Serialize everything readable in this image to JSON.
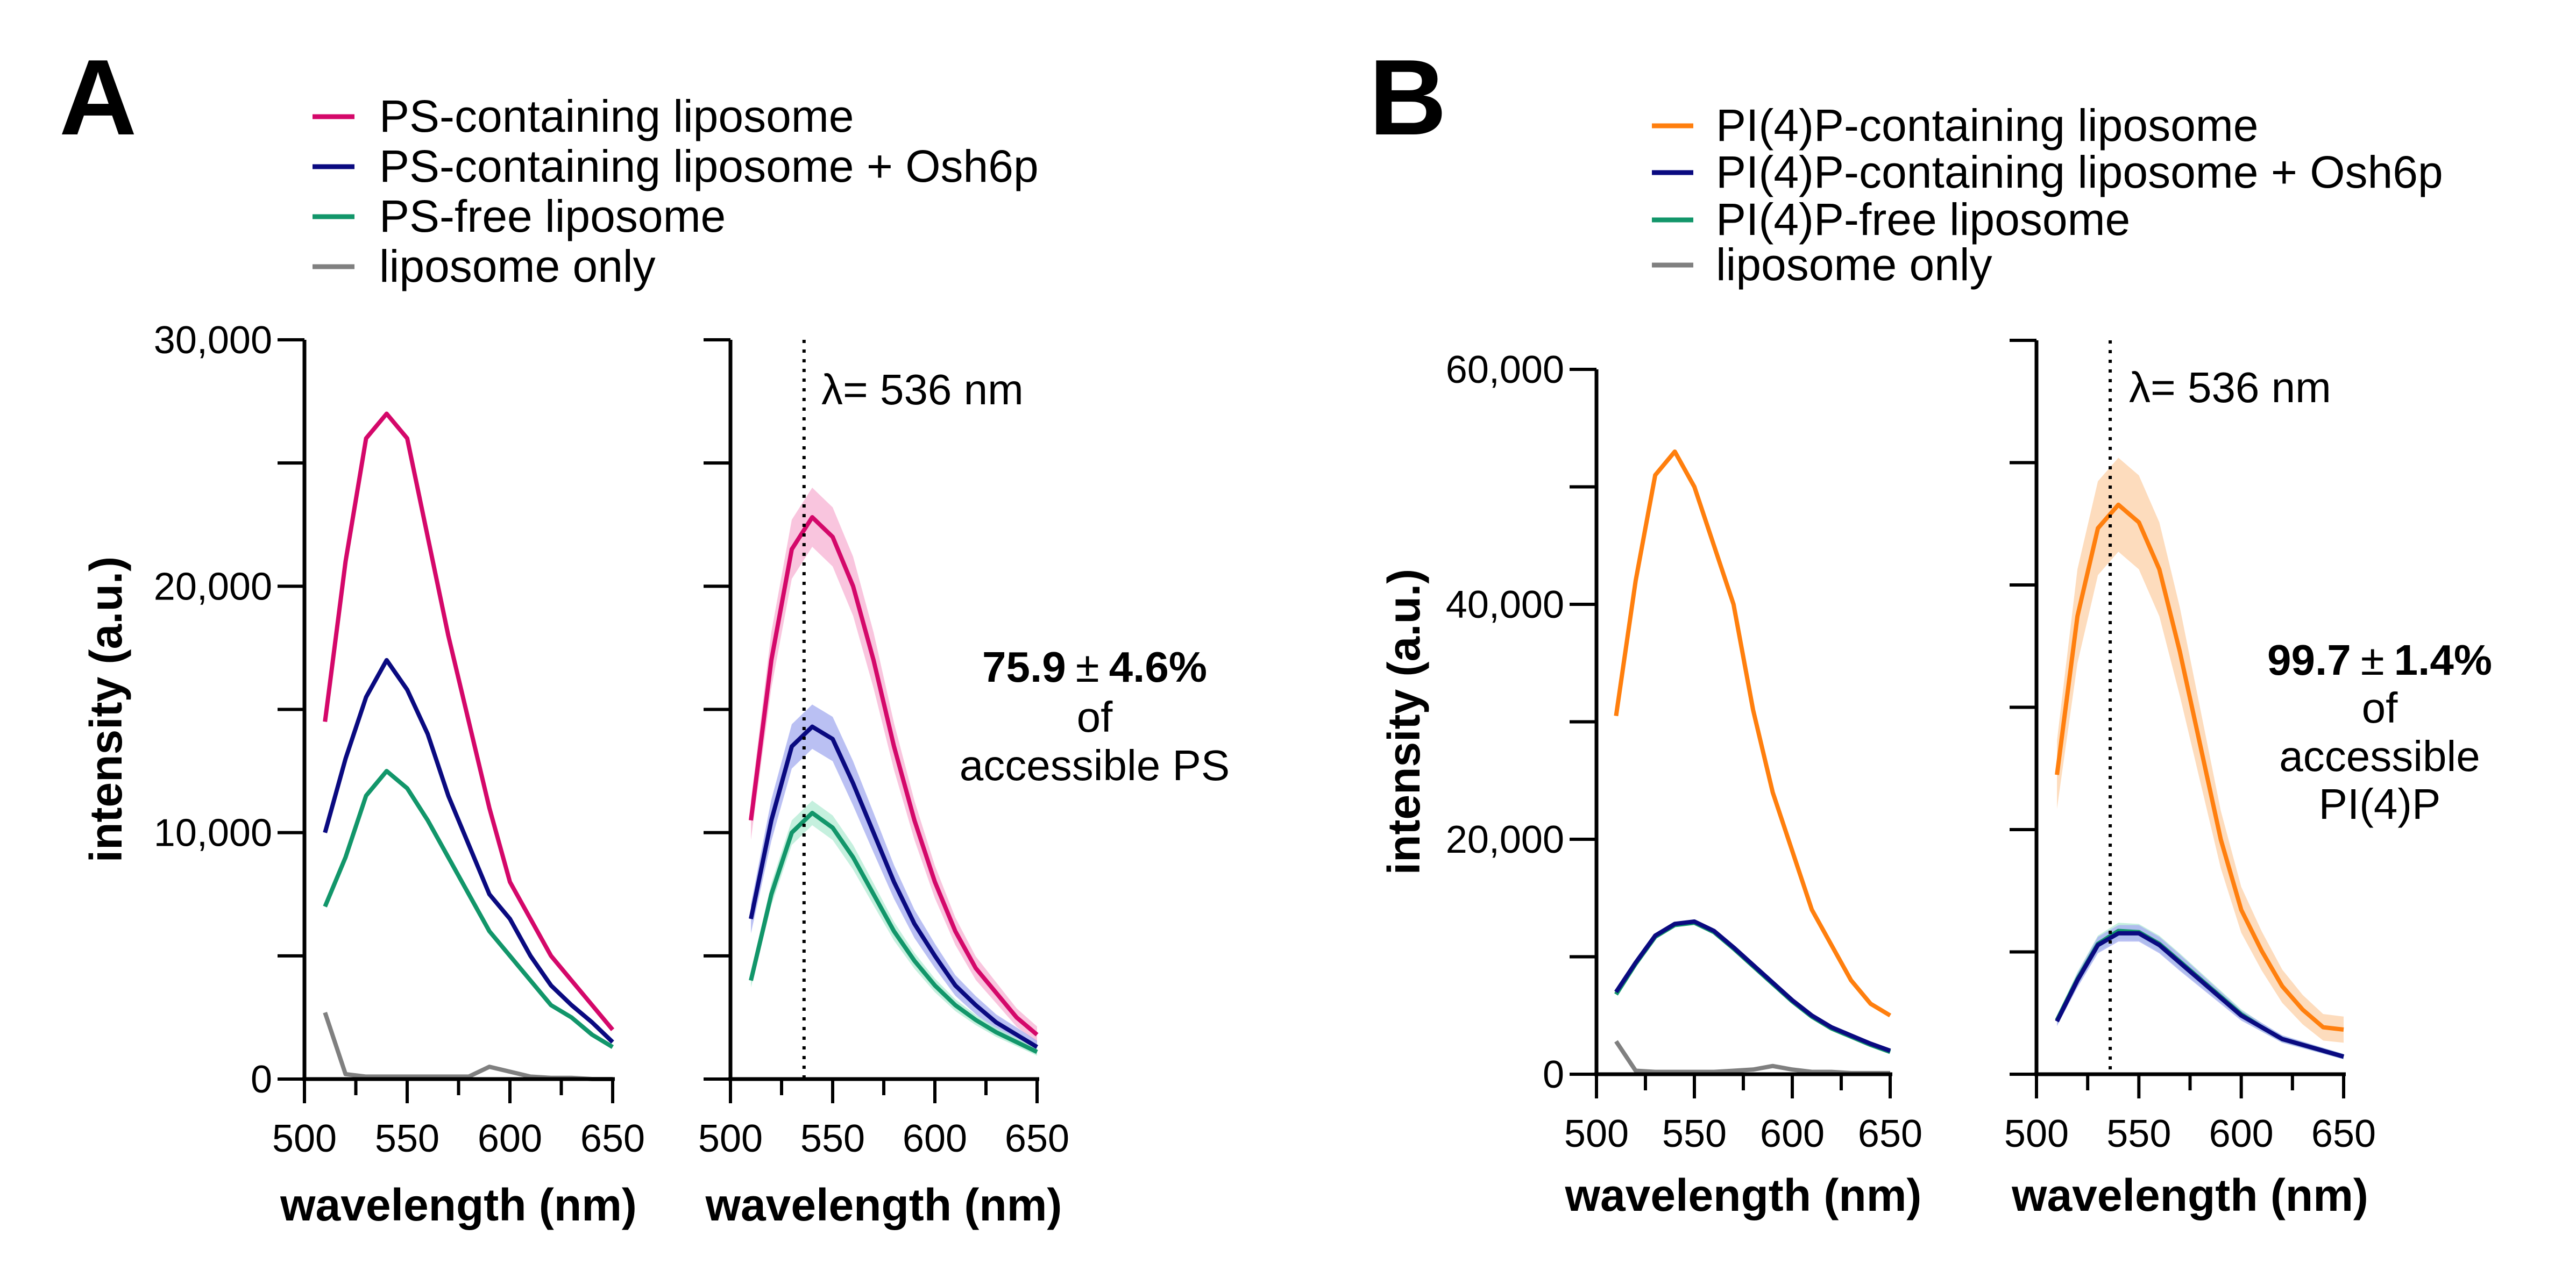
{
  "colors": {
    "pink": "#d4086a",
    "navy": "#0a0a80",
    "green": "#12966a",
    "gray": "#808080",
    "orange": "#ff7f0e",
    "pink_band": "#f7b6d6",
    "navy_band": "#a9b0f0",
    "green_band": "#b6ecd6",
    "orange_band": "#fcd3ad"
  },
  "panel_letters": [
    "A",
    "B"
  ],
  "legends": [
    {
      "items": [
        {
          "label": "PS-containing liposome",
          "color": "#d4086a"
        },
        {
          "label": "PS-containing liposome + Osh6p",
          "color": "#0a0a80"
        },
        {
          "label": "PS-free liposome",
          "color": "#12966a"
        },
        {
          "label": "liposome only",
          "color": "#808080"
        }
      ]
    },
    {
      "items": [
        {
          "label": "PI(4)P-containing liposome",
          "color": "#ff7f0e"
        },
        {
          "label": "PI(4)P-containing liposome + Osh6p",
          "color": "#0a0a80"
        },
        {
          "label": "PI(4)P-free liposome",
          "color": "#12966a"
        },
        {
          "label": "liposome only",
          "color": "#808080"
        }
      ]
    }
  ],
  "annotations": [
    {
      "lambda": "λ= 536 nm",
      "value": "75.9",
      "pm": "±",
      "err": "4.6%",
      "lines": [
        "of",
        "accessible PS"
      ]
    },
    {
      "lambda": "λ= 536 nm",
      "value": "99.7",
      "pm": "±",
      "err": "1.4%",
      "lines": [
        "of",
        "accessible",
        "PI(4)P"
      ]
    }
  ],
  "chart_data": [
    {
      "type": "line",
      "panel": "A-left",
      "xlabel": "wavelength (nm)",
      "ylabel": "intensity (a.u.)",
      "xlim": [
        500,
        650
      ],
      "ylim": [
        0,
        30000
      ],
      "xticks": [
        "500",
        "550",
        "600",
        "650"
      ],
      "yticks": [
        "0",
        "10,000",
        "20,000",
        "30,000"
      ],
      "grid": false,
      "x": [
        510,
        520,
        530,
        540,
        550,
        560,
        570,
        580,
        590,
        600,
        610,
        620,
        630,
        640,
        650
      ],
      "series": [
        {
          "name": "PS-containing liposome",
          "color": "#d4086a",
          "values": [
            14500,
            21000,
            26000,
            27000,
            26000,
            22000,
            18000,
            14500,
            11000,
            8000,
            6500,
            5000,
            4000,
            3000,
            2000
          ]
        },
        {
          "name": "PS-containing liposome + Osh6p",
          "color": "#0a0a80",
          "values": [
            10000,
            13000,
            15500,
            17000,
            15800,
            14000,
            11500,
            9500,
            7500,
            6500,
            5000,
            3800,
            3000,
            2300,
            1500
          ]
        },
        {
          "name": "PS-free liposome",
          "color": "#12966a",
          "values": [
            7000,
            9000,
            11500,
            12500,
            11800,
            10500,
            9000,
            7500,
            6000,
            5000,
            4000,
            3000,
            2500,
            1800,
            1300
          ]
        },
        {
          "name": "liposome only",
          "color": "#808080",
          "values": [
            2700,
            200,
            100,
            100,
            100,
            100,
            100,
            100,
            500,
            300,
            100,
            50,
            50,
            0,
            0
          ]
        }
      ]
    },
    {
      "type": "line",
      "panel": "A-right",
      "xlabel": "wavelength (nm)",
      "xlim": [
        500,
        650
      ],
      "ylim": [
        0,
        30000
      ],
      "xticks": [
        "500",
        "550",
        "600",
        "650"
      ],
      "vline": 536,
      "grid": false,
      "x": [
        510,
        520,
        530,
        540,
        550,
        560,
        570,
        580,
        590,
        600,
        610,
        620,
        630,
        640,
        650
      ],
      "series": [
        {
          "name": "PS-containing liposome",
          "color": "#d4086a",
          "band": "#f7b6d6",
          "err": 1200,
          "values": [
            10500,
            17000,
            21500,
            22800,
            22000,
            20000,
            17000,
            13500,
            10500,
            8000,
            6000,
            4500,
            3500,
            2500,
            1800
          ]
        },
        {
          "name": "PS-containing liposome + Osh6p",
          "color": "#0a0a80",
          "band": "#a9b0f0",
          "err": 900,
          "values": [
            6500,
            10500,
            13500,
            14300,
            13800,
            12000,
            10000,
            8000,
            6300,
            5000,
            3800,
            3000,
            2300,
            1800,
            1300
          ]
        },
        {
          "name": "PS-free liposome",
          "color": "#12966a",
          "band": "#b6ecd6",
          "err": 500,
          "values": [
            4000,
            7500,
            10000,
            10800,
            10200,
            9000,
            7500,
            6000,
            4800,
            3800,
            3000,
            2400,
            1900,
            1500,
            1100
          ]
        }
      ]
    },
    {
      "type": "line",
      "panel": "B-left",
      "xlabel": "wavelength (nm)",
      "ylabel": "intensity (a.u.)",
      "xlim": [
        500,
        650
      ],
      "ylim": [
        0,
        60000
      ],
      "xticks": [
        "500",
        "550",
        "600",
        "650"
      ],
      "yticks": [
        "0",
        "20,000",
        "40,000",
        "60,000"
      ],
      "grid": false,
      "x": [
        510,
        520,
        530,
        540,
        550,
        560,
        570,
        580,
        590,
        600,
        610,
        620,
        630,
        640,
        650
      ],
      "series": [
        {
          "name": "PI(4)P-containing liposome",
          "color": "#ff7f0e",
          "values": [
            30500,
            42000,
            51000,
            53000,
            50000,
            45000,
            40000,
            31000,
            24000,
            19000,
            14000,
            11000,
            8000,
            6000,
            5000
          ]
        },
        {
          "name": "PI(4)P-free liposome",
          "color": "#12966a",
          "values": [
            6800,
            9400,
            11700,
            12700,
            12900,
            12100,
            10700,
            9200,
            7700,
            6200,
            4900,
            3900,
            3200,
            2500,
            1900
          ]
        },
        {
          "name": "PI(4)P-containing liposome + Osh6p",
          "color": "#0a0a80",
          "values": [
            7000,
            9500,
            11800,
            12800,
            13000,
            12200,
            10800,
            9300,
            7800,
            6300,
            5000,
            4000,
            3300,
            2600,
            2000
          ]
        },
        {
          "name": "liposome only",
          "color": "#808080",
          "values": [
            2800,
            300,
            200,
            200,
            200,
            200,
            300,
            400,
            700,
            400,
            200,
            200,
            100,
            100,
            100
          ]
        }
      ]
    },
    {
      "type": "line",
      "panel": "B-right",
      "xlabel": "wavelength (nm)",
      "xlim": [
        500,
        650
      ],
      "ylim": [
        0,
        62500
      ],
      "xticks": [
        "500",
        "550",
        "600",
        "650"
      ],
      "vline": 536,
      "grid": false,
      "x": [
        510,
        520,
        530,
        540,
        550,
        560,
        570,
        580,
        590,
        600,
        610,
        620,
        630,
        640,
        650
      ],
      "series": [
        {
          "name": "PI(4)P-containing liposome",
          "color": "#ff7f0e",
          "band": "#fcd3ad",
          "err": 4000,
          "values": [
            25500,
            39000,
            46500,
            48500,
            47000,
            43000,
            36000,
            28000,
            20000,
            14000,
            10500,
            7500,
            5500,
            4000,
            3800
          ]
        },
        {
          "name": "PI(4)P-free liposome",
          "color": "#12966a",
          "band": "#b6ecd6",
          "err": 700,
          "values": [
            4600,
            8100,
            11100,
            12200,
            12100,
            11100,
            9600,
            8100,
            6600,
            5100,
            4000,
            3000,
            2500,
            2000,
            1500
          ]
        },
        {
          "name": "PI(4)P-containing liposome + Osh6p",
          "color": "#0a0a80",
          "band": "#a9b0f0",
          "err": 700,
          "values": [
            4500,
            8000,
            11000,
            12000,
            12000,
            11000,
            9500,
            8000,
            6500,
            5000,
            4000,
            3000,
            2500,
            2000,
            1500
          ]
        }
      ]
    }
  ]
}
